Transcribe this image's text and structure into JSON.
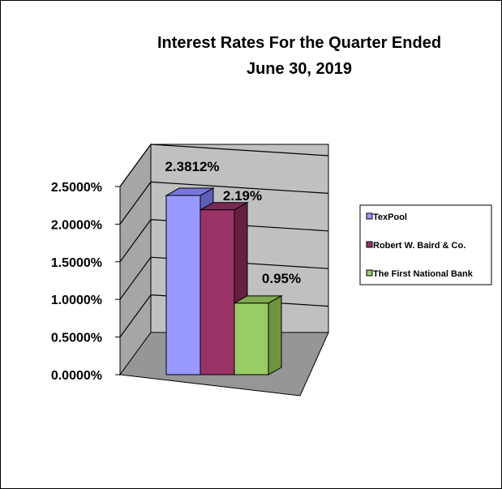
{
  "chart_data": {
    "type": "bar",
    "style": "3d-clustered-column",
    "title_lines": [
      "Interest Rates For the Quarter Ended",
      "June 30, 2019"
    ],
    "xlabel": "",
    "ylabel": "",
    "ylim": [
      0,
      0.025
    ],
    "y_ticks": [
      {
        "value": 0.0,
        "label": "0.0000%"
      },
      {
        "value": 0.005,
        "label": "0.5000%"
      },
      {
        "value": 0.01,
        "label": "1.0000%"
      },
      {
        "value": 0.015,
        "label": "1.5000%"
      },
      {
        "value": 0.02,
        "label": "2.0000%"
      },
      {
        "value": 0.025,
        "label": "2.5000%"
      }
    ],
    "grid": true,
    "legend_position": "right",
    "series": [
      {
        "name": "TexPool",
        "value": 0.023812,
        "data_label": "2.3812%",
        "color": "#9999FF",
        "top_color": "#7777DD",
        "side_color": "#5F5FB8"
      },
      {
        "name": "Robert W. Baird & Co.",
        "value": 0.0219,
        "data_label": "2.19%",
        "color": "#993366",
        "top_color": "#7A2852",
        "side_color": "#66203F"
      },
      {
        "name": "The First National Bank",
        "value": 0.0095,
        "data_label": "0.95%",
        "color": "#99CC66",
        "top_color": "#7FAA50",
        "side_color": "#6F9440"
      }
    ],
    "colors": {
      "wall": "#C0C0C0",
      "side_wall": "#A6A6A6",
      "floor": "#969696",
      "gridline": "#000000"
    }
  }
}
